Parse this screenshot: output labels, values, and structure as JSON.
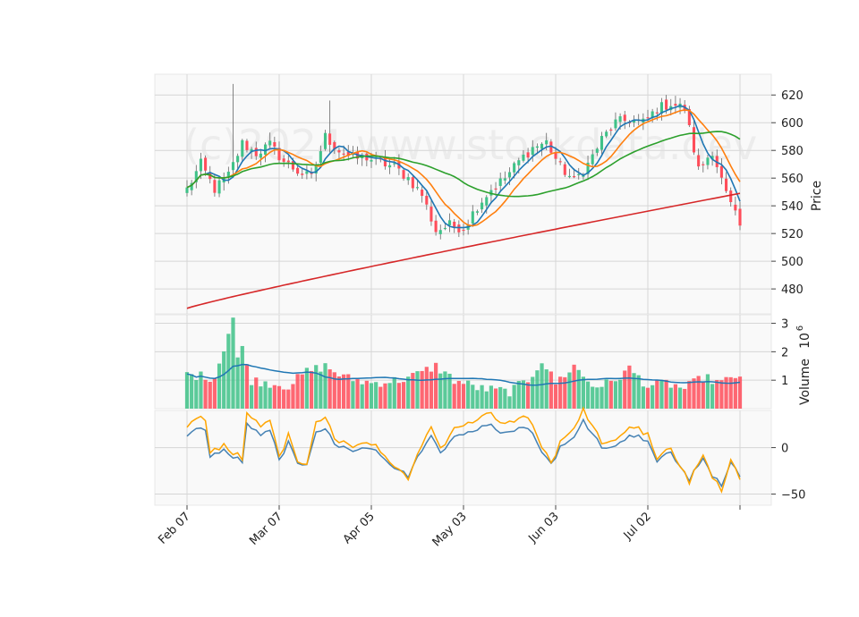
{
  "chart_data": {
    "type": "candlestick",
    "watermark": "(c)2024 www.stockdata.dev",
    "x_tick_labels": [
      "Feb 07",
      "Mar 07",
      "Apr 05",
      "May 03",
      "Jun 03",
      "Jul 02"
    ],
    "colors": {
      "up": "#3fc288",
      "down": "#ff4d5a",
      "sma_fast": "#1f77b4",
      "sma_mid": "#ff7f0e",
      "sma_slow": "#2ca02c",
      "sma_long": "#d62728",
      "volume_ma": "#1f77b4",
      "osc_a": "#4682b4",
      "osc_b": "#ffa500",
      "grid": "#d6d6d6",
      "panel_bg": "#f9f9f9"
    },
    "price_panel": {
      "ylabel": "Price",
      "ylim": [
        462,
        635
      ],
      "yticks": [
        480,
        500,
        520,
        540,
        560,
        580,
        600,
        620
      ],
      "series_names": [
        "SMA fast",
        "SMA mid",
        "SMA slow",
        "SMA long"
      ]
    },
    "volume_panel": {
      "ylabel": "Volume",
      "multiplier_label": "10",
      "multiplier_exp": "6",
      "ylim": [
        0,
        3.3
      ],
      "yticks": [
        1,
        2,
        3
      ]
    },
    "oscillator_panel": {
      "ylim": [
        -62,
        40
      ],
      "yticks": [
        0,
        -50
      ],
      "ytick_labels": [
        "0",
        "−50"
      ]
    },
    "ohlc_anchors": [
      [
        0,
        552
      ],
      [
        3,
        570
      ],
      [
        6,
        552
      ],
      [
        9,
        562
      ],
      [
        12,
        585
      ],
      [
        15,
        578
      ],
      [
        18,
        584
      ],
      [
        21,
        572
      ],
      [
        24,
        565
      ],
      [
        27,
        560
      ],
      [
        30,
        590
      ],
      [
        33,
        580
      ],
      [
        36,
        574
      ],
      [
        39,
        575
      ],
      [
        42,
        571
      ],
      [
        45,
        568
      ],
      [
        48,
        560
      ],
      [
        51,
        548
      ],
      [
        54,
        522
      ],
      [
        57,
        526
      ],
      [
        60,
        524
      ],
      [
        63,
        540
      ],
      [
        66,
        552
      ],
      [
        69,
        560
      ],
      [
        72,
        572
      ],
      [
        75,
        582
      ],
      [
        78,
        586
      ],
      [
        81,
        568
      ],
      [
        84,
        558
      ],
      [
        87,
        570
      ],
      [
        90,
        588
      ],
      [
        93,
        600
      ],
      [
        96,
        602
      ],
      [
        99,
        600
      ],
      [
        102,
        610
      ],
      [
        105,
        614
      ],
      [
        108,
        610
      ],
      [
        111,
        566
      ],
      [
        114,
        580
      ],
      [
        117,
        548
      ],
      [
        120,
        525
      ]
    ],
    "volume_anchors": [
      [
        0,
        1.2
      ],
      [
        6,
        1.1
      ],
      [
        10,
        3.2
      ],
      [
        14,
        1.0
      ],
      [
        22,
        0.8
      ],
      [
        26,
        1.3
      ],
      [
        30,
        1.5
      ],
      [
        34,
        1.1
      ],
      [
        40,
        0.9
      ],
      [
        46,
        1.0
      ],
      [
        50,
        1.2
      ],
      [
        54,
        1.5
      ],
      [
        58,
        1.0
      ],
      [
        64,
        0.7
      ],
      [
        70,
        0.6
      ],
      [
        74,
        1.0
      ],
      [
        77,
        1.7
      ],
      [
        80,
        0.9
      ],
      [
        84,
        1.5
      ],
      [
        88,
        0.8
      ],
      [
        92,
        0.9
      ],
      [
        96,
        1.4
      ],
      [
        100,
        0.8
      ],
      [
        104,
        0.9
      ],
      [
        108,
        0.7
      ],
      [
        112,
        1.1
      ],
      [
        116,
        0.9
      ],
      [
        120,
        1.2
      ]
    ],
    "osc_anchors": [
      [
        0,
        10
      ],
      [
        2,
        22
      ],
      [
        4,
        18
      ],
      [
        5,
        -10
      ],
      [
        8,
        -4
      ],
      [
        12,
        -15
      ],
      [
        13,
        25
      ],
      [
        16,
        15
      ],
      [
        18,
        20
      ],
      [
        20,
        -14
      ],
      [
        22,
        5
      ],
      [
        24,
        -16
      ],
      [
        26,
        -20
      ],
      [
        28,
        15
      ],
      [
        30,
        20
      ],
      [
        32,
        5
      ],
      [
        36,
        -5
      ],
      [
        40,
        0
      ],
      [
        44,
        -20
      ],
      [
        48,
        -30
      ],
      [
        50,
        -10
      ],
      [
        53,
        15
      ],
      [
        55,
        -5
      ],
      [
        58,
        12
      ],
      [
        62,
        18
      ],
      [
        66,
        25
      ],
      [
        68,
        18
      ],
      [
        71,
        20
      ],
      [
        74,
        22
      ],
      [
        76,
        5
      ],
      [
        79,
        -18
      ],
      [
        81,
        0
      ],
      [
        84,
        10
      ],
      [
        86,
        30
      ],
      [
        88,
        15
      ],
      [
        90,
        2
      ],
      [
        93,
        0
      ],
      [
        96,
        15
      ],
      [
        100,
        8
      ],
      [
        102,
        -15
      ],
      [
        105,
        -5
      ],
      [
        109,
        -35
      ],
      [
        112,
        -10
      ],
      [
        114,
        -30
      ],
      [
        116,
        -40
      ],
      [
        118,
        -18
      ],
      [
        120,
        -30
      ]
    ]
  }
}
